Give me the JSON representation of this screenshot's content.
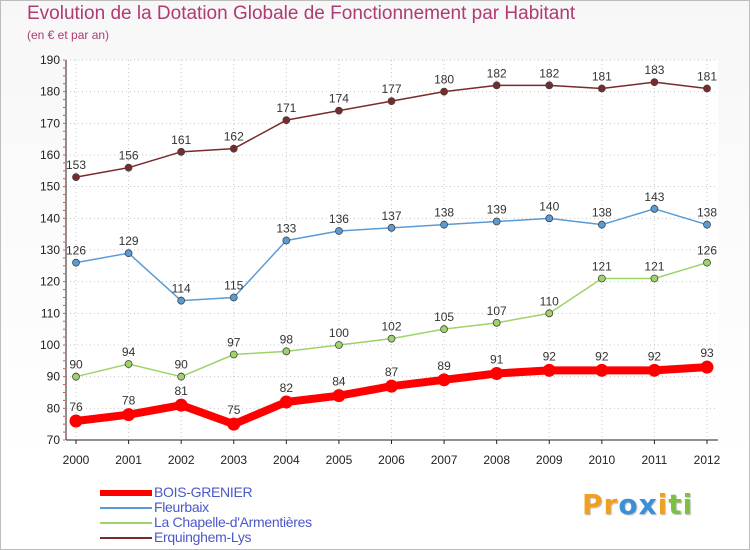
{
  "header": {
    "title": "Evolution de la Dotation Globale de Fonctionnement par Habitant",
    "subtitle": "(en € et par an)"
  },
  "chart_data": {
    "type": "line",
    "title": "Evolution de la Dotation Globale de Fonctionnement par Habitant",
    "subtitle": "(en € et par an)",
    "xlabel": "",
    "ylabel": "",
    "x": [
      "2000",
      "2001",
      "2002",
      "2003",
      "2004",
      "2005",
      "2006",
      "2007",
      "2008",
      "2009",
      "2010",
      "2011",
      "2012"
    ],
    "ylim": [
      70,
      190
    ],
    "yticks": [
      70,
      80,
      90,
      100,
      110,
      120,
      130,
      140,
      150,
      160,
      170,
      180,
      190
    ],
    "grid": true,
    "legend_position": "bottom-left",
    "series": [
      {
        "name": "BOIS-GRENIER",
        "color": "#ff0000",
        "emphasis": true,
        "values": [
          76,
          78,
          81,
          75,
          82,
          84,
          87,
          89,
          91,
          92,
          92,
          92,
          93
        ]
      },
      {
        "name": "Fleurbaix",
        "color": "#5b9bd5",
        "emphasis": false,
        "values": [
          126,
          129,
          114,
          115,
          133,
          136,
          137,
          138,
          139,
          140,
          138,
          143,
          138
        ]
      },
      {
        "name": "La Chapelle-d'Armentières",
        "color": "#9ed36a",
        "emphasis": false,
        "values": [
          90,
          94,
          90,
          97,
          98,
          100,
          102,
          105,
          107,
          110,
          121,
          121,
          126
        ]
      },
      {
        "name": "Erquinghem-Lys",
        "color": "#7a2a2a",
        "emphasis": false,
        "values": [
          153,
          156,
          161,
          162,
          171,
          174,
          177,
          180,
          182,
          182,
          181,
          183,
          181
        ]
      }
    ]
  },
  "legend": {
    "items": [
      {
        "label": "BOIS-GRENIER",
        "color": "#ff0000"
      },
      {
        "label": "Fleurbaix",
        "color": "#5b9bd5"
      },
      {
        "label": "La Chapelle-d'Armentières",
        "color": "#9ed36a"
      },
      {
        "label": "Erquinghem-Lys",
        "color": "#7a2a2a"
      }
    ]
  },
  "branding": {
    "logo_letters": [
      "P",
      "r",
      "o",
      "x",
      "i",
      "t",
      "i"
    ],
    "logo_colors": [
      "#f0a020",
      "#f0a020",
      "#3a8fd8",
      "#3a8fd8",
      "#f0a020",
      "#7cc242",
      "#7cc242"
    ]
  }
}
